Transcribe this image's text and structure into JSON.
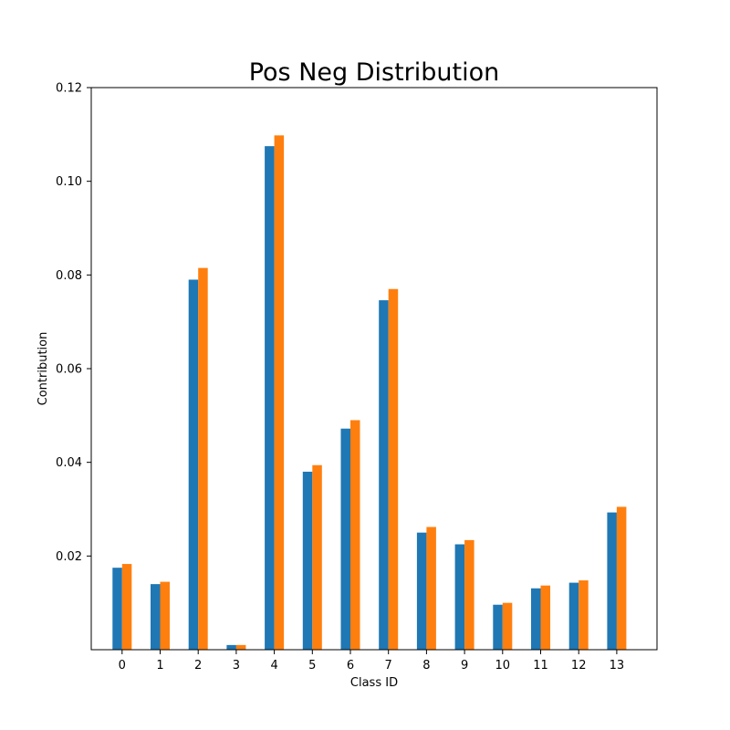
{
  "chart_data": {
    "type": "bar",
    "title": "Pos Neg Distribution",
    "xlabel": "Class ID",
    "ylabel": "Contribution",
    "categories": [
      "0",
      "1",
      "2",
      "3",
      "4",
      "5",
      "6",
      "7",
      "8",
      "9",
      "10",
      "11",
      "12",
      "13"
    ],
    "series": [
      {
        "values": [
          0.0175,
          0.014,
          0.079,
          0.001,
          0.1075,
          0.038,
          0.0472,
          0.0746,
          0.025,
          0.0225,
          0.0096,
          0.0131,
          0.0143,
          0.0293
        ],
        "color": "#1f77b4"
      },
      {
        "values": [
          0.0183,
          0.0145,
          0.0815,
          0.001,
          0.1098,
          0.0394,
          0.049,
          0.077,
          0.0262,
          0.0234,
          0.01,
          0.0137,
          0.0148,
          0.0305
        ],
        "color": "#ff7f0e"
      }
    ],
    "ylim": [
      0,
      0.12
    ],
    "yticks": [
      0.02,
      0.04,
      0.06,
      0.08,
      0.1,
      0.12
    ],
    "ytick_labels": [
      "0.02",
      "0.04",
      "0.06",
      "0.08",
      "0.10",
      "0.12"
    ],
    "grid": false,
    "legend": "none"
  }
}
